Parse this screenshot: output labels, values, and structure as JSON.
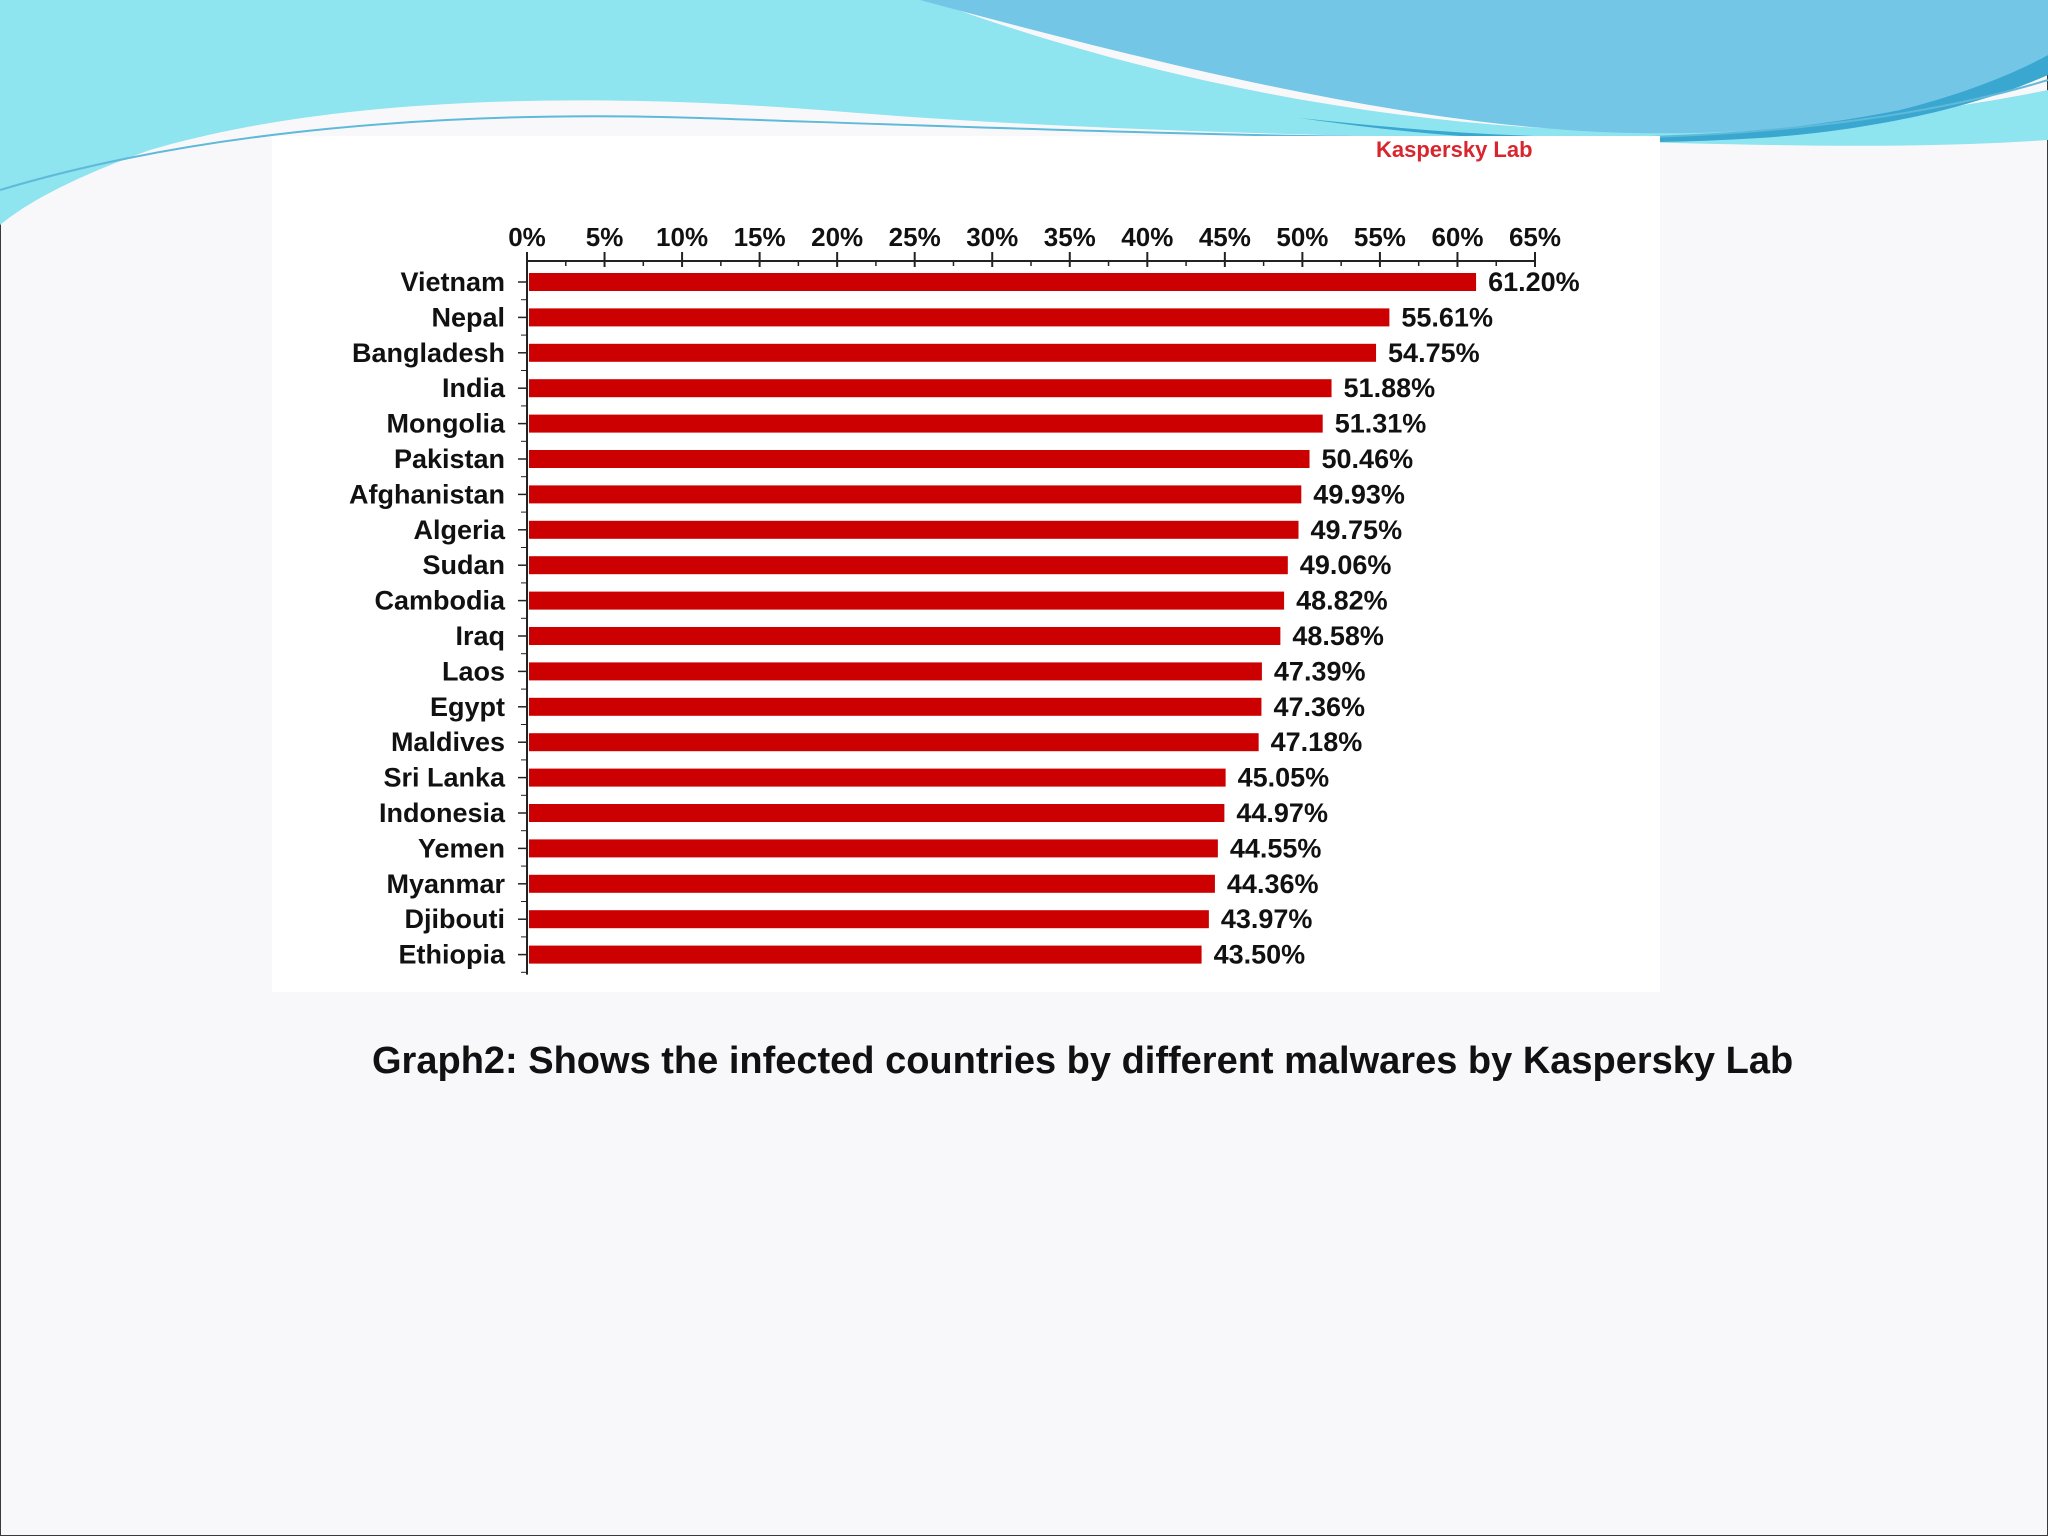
{
  "slide": {
    "caption": "Graph2: Shows the infected countries by different malwares by Kaspersky Lab",
    "brand": "Kaspersky Lab"
  },
  "colors": {
    "bar": "#cc0000",
    "brand": "#d8262e",
    "wave_light": "#8ee4ef",
    "wave_mid": "#74c6e6",
    "wave_dark": "#3aa7d0"
  },
  "chart_data": {
    "type": "bar",
    "orientation": "horizontal",
    "title": "",
    "xlabel": "",
    "ylabel": "",
    "xlim": [
      0,
      65
    ],
    "x_ticks": [
      0,
      5,
      10,
      15,
      20,
      25,
      30,
      35,
      40,
      45,
      50,
      55,
      60,
      65
    ],
    "x_tick_labels": [
      "0%",
      "5%",
      "10%",
      "15%",
      "20%",
      "25%",
      "30%",
      "35%",
      "40%",
      "45%",
      "50%",
      "55%",
      "60%",
      "65%"
    ],
    "axis_position": "top",
    "grid": false,
    "categories": [
      "Vietnam",
      "Nepal",
      "Bangladesh",
      "India",
      "Mongolia",
      "Pakistan",
      "Afghanistan",
      "Algeria",
      "Sudan",
      "Cambodia",
      "Iraq",
      "Laos",
      "Egypt",
      "Maldives",
      "Sri Lanka",
      "Indonesia",
      "Yemen",
      "Myanmar",
      "Djibouti",
      "Ethiopia"
    ],
    "values": [
      61.2,
      55.61,
      54.75,
      51.88,
      51.31,
      50.46,
      49.93,
      49.75,
      49.06,
      48.82,
      48.58,
      47.39,
      47.36,
      47.18,
      45.05,
      44.97,
      44.55,
      44.36,
      43.97,
      43.5
    ],
    "value_labels": [
      "61.20%",
      "55.61%",
      "54.75%",
      "51.88%",
      "51.31%",
      "50.46%",
      "49.93%",
      "49.75%",
      "49.06%",
      "48.82%",
      "48.58%",
      "47.39%",
      "47.36%",
      "47.18%",
      "45.05%",
      "44.97%",
      "44.55%",
      "44.36%",
      "43.97%",
      "43.50%"
    ]
  }
}
